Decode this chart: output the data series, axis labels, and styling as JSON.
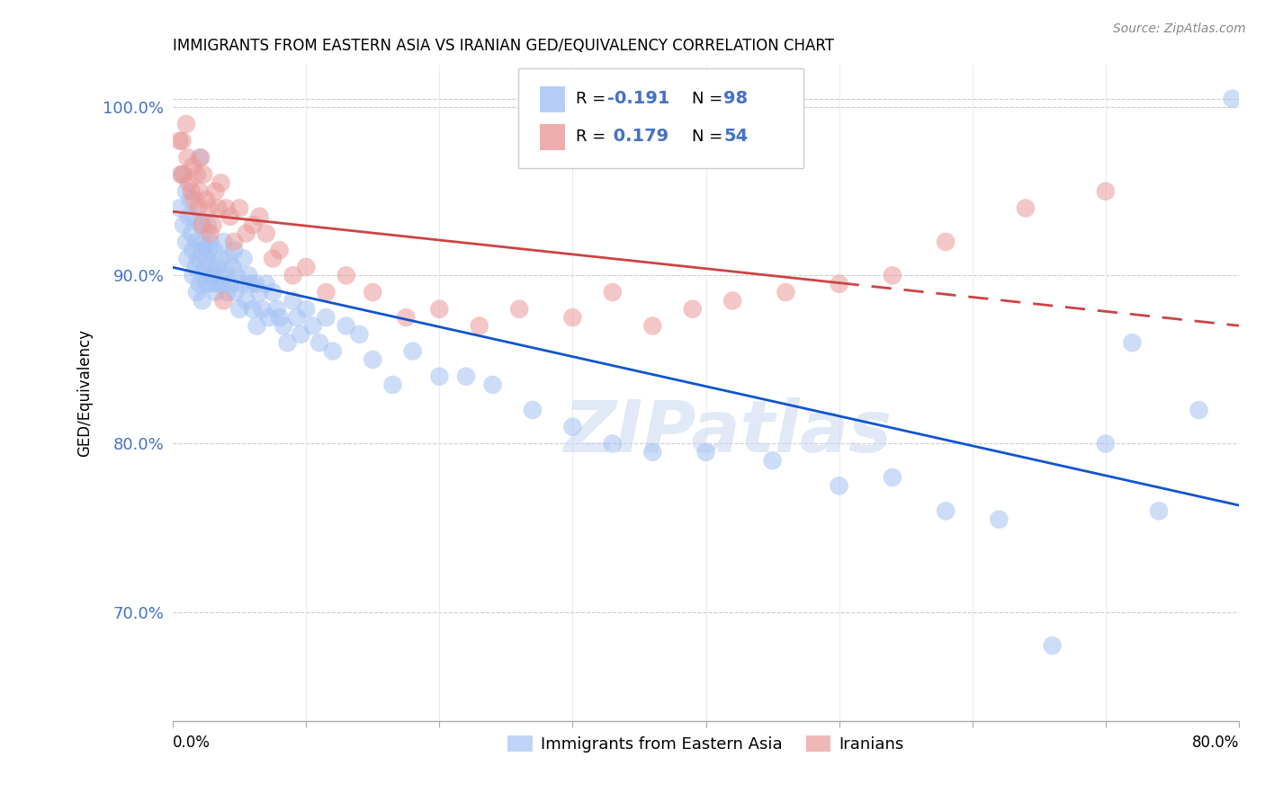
{
  "title": "IMMIGRANTS FROM EASTERN ASIA VS IRANIAN GED/EQUIVALENCY CORRELATION CHART",
  "source": "Source: ZipAtlas.com",
  "ylabel": "GED/Equivalency",
  "xmin": 0.0,
  "xmax": 0.8,
  "ymin": 0.635,
  "ymax": 1.025,
  "yticks": [
    0.7,
    0.8,
    0.9,
    1.0
  ],
  "ytick_labels": [
    "70.0%",
    "80.0%",
    "90.0%",
    "100.0%"
  ],
  "blue_color": "#a4c2f4",
  "pink_color": "#ea9999",
  "blue_line_color": "#1155cc",
  "pink_line_color": "#cc4444",
  "r_value_color": "#4472c4",
  "watermark": "ZIPatlas",
  "blue_scatter_x": [
    0.005,
    0.007,
    0.008,
    0.01,
    0.01,
    0.011,
    0.012,
    0.013,
    0.014,
    0.015,
    0.015,
    0.016,
    0.017,
    0.018,
    0.018,
    0.019,
    0.02,
    0.02,
    0.021,
    0.022,
    0.022,
    0.023,
    0.023,
    0.024,
    0.025,
    0.025,
    0.026,
    0.027,
    0.028,
    0.028,
    0.029,
    0.03,
    0.031,
    0.032,
    0.033,
    0.034,
    0.035,
    0.036,
    0.037,
    0.038,
    0.04,
    0.041,
    0.042,
    0.043,
    0.045,
    0.046,
    0.047,
    0.048,
    0.05,
    0.052,
    0.053,
    0.055,
    0.057,
    0.058,
    0.06,
    0.062,
    0.063,
    0.065,
    0.067,
    0.07,
    0.072,
    0.075,
    0.078,
    0.08,
    0.083,
    0.086,
    0.09,
    0.093,
    0.096,
    0.1,
    0.105,
    0.11,
    0.115,
    0.12,
    0.13,
    0.14,
    0.15,
    0.165,
    0.18,
    0.2,
    0.22,
    0.24,
    0.27,
    0.3,
    0.33,
    0.36,
    0.4,
    0.45,
    0.5,
    0.54,
    0.58,
    0.62,
    0.66,
    0.7,
    0.72,
    0.74,
    0.77,
    0.795
  ],
  "blue_scatter_y": [
    0.94,
    0.96,
    0.93,
    0.95,
    0.92,
    0.91,
    0.935,
    0.945,
    0.925,
    0.915,
    0.9,
    0.935,
    0.905,
    0.92,
    0.89,
    0.91,
    0.97,
    0.895,
    0.93,
    0.915,
    0.885,
    0.92,
    0.9,
    0.905,
    0.91,
    0.895,
    0.93,
    0.915,
    0.895,
    0.92,
    0.905,
    0.9,
    0.915,
    0.89,
    0.905,
    0.895,
    0.9,
    0.91,
    0.895,
    0.92,
    0.9,
    0.89,
    0.91,
    0.895,
    0.905,
    0.915,
    0.89,
    0.9,
    0.88,
    0.895,
    0.91,
    0.885,
    0.9,
    0.895,
    0.88,
    0.895,
    0.87,
    0.89,
    0.88,
    0.895,
    0.875,
    0.89,
    0.88,
    0.875,
    0.87,
    0.86,
    0.885,
    0.875,
    0.865,
    0.88,
    0.87,
    0.86,
    0.875,
    0.855,
    0.87,
    0.865,
    0.85,
    0.835,
    0.855,
    0.84,
    0.84,
    0.835,
    0.82,
    0.81,
    0.8,
    0.795,
    0.795,
    0.79,
    0.775,
    0.78,
    0.76,
    0.755,
    0.68,
    0.8,
    0.86,
    0.76,
    0.82,
    1.005
  ],
  "pink_scatter_x": [
    0.005,
    0.006,
    0.007,
    0.008,
    0.01,
    0.011,
    0.012,
    0.014,
    0.015,
    0.016,
    0.018,
    0.019,
    0.02,
    0.021,
    0.022,
    0.023,
    0.025,
    0.027,
    0.028,
    0.03,
    0.032,
    0.034,
    0.036,
    0.038,
    0.04,
    0.043,
    0.046,
    0.05,
    0.055,
    0.06,
    0.065,
    0.07,
    0.075,
    0.08,
    0.09,
    0.1,
    0.115,
    0.13,
    0.15,
    0.175,
    0.2,
    0.23,
    0.26,
    0.3,
    0.33,
    0.36,
    0.39,
    0.42,
    0.46,
    0.5,
    0.54,
    0.58,
    0.64,
    0.7
  ],
  "pink_scatter_y": [
    0.98,
    0.96,
    0.98,
    0.96,
    0.99,
    0.97,
    0.955,
    0.95,
    0.965,
    0.945,
    0.96,
    0.94,
    0.95,
    0.97,
    0.93,
    0.96,
    0.945,
    0.94,
    0.925,
    0.93,
    0.95,
    0.94,
    0.955,
    0.885,
    0.94,
    0.935,
    0.92,
    0.94,
    0.925,
    0.93,
    0.935,
    0.925,
    0.91,
    0.915,
    0.9,
    0.905,
    0.89,
    0.9,
    0.89,
    0.875,
    0.88,
    0.87,
    0.88,
    0.875,
    0.89,
    0.87,
    0.88,
    0.885,
    0.89,
    0.895,
    0.9,
    0.92,
    0.94,
    0.95
  ]
}
